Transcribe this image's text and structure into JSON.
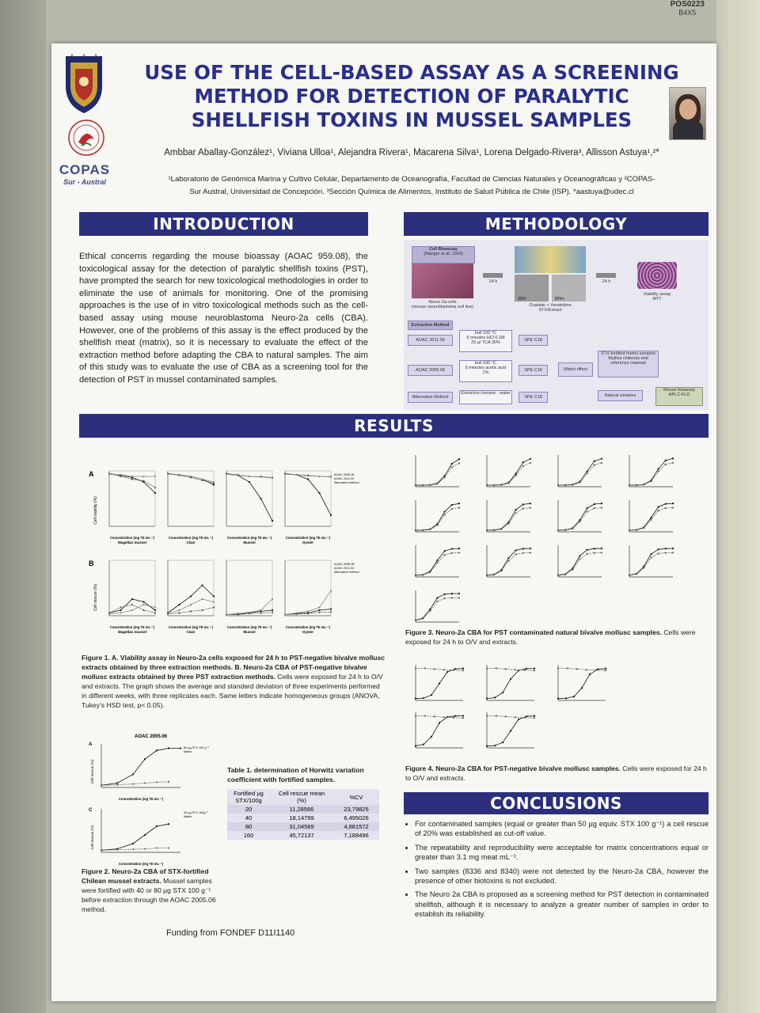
{
  "poster_tag": {
    "code": "POS0223",
    "sub": "B4X5"
  },
  "header": {
    "title_lines": [
      "USE  OF THE CELL-BASED ASSAY AS A SCREENING",
      "METHOD FOR DETECTION OF PARALYTIC",
      "SHELLFISH TOXINS IN MUSSEL SAMPLES"
    ],
    "authors": "Ambbar Aballay-González¹, Viviana Ulloa¹, Alejandra Rivera¹, Macarena Silva¹, Lorena Delgado-Rivera³, Allisson Astuya¹,²*",
    "affiliation_1": "¹Laboratorio de Genómica Marina y Cultivo Celular, Departamento de Oceanografía, Facultad de Ciencias Naturales y Oceanográficas y ²COPAS-",
    "affiliation_2": "Sur Austral, Universidad de Concepción. ³Sección Química de Alimentos, Instituto de Salud Pública de Chile (ISP). *aastuya@udec.cl",
    "logo_copas": "COPAS",
    "logo_copas_sub": "Sur - Austral"
  },
  "introduction": {
    "heading": "INTRODUCTION",
    "text": "Ethical concerns regarding the mouse bioassay (AOAC 959.08), the toxicological assay for the detection of paralytic shellfish toxins (PST), have prompted the search for new toxicological methodologies in order to eliminate the use of animals for monitoring. One of the promising approaches is the use of in vitro toxicological methods such as the cell-based assay using mouse neuroblastoma Neuro-2a cells (CBA). However, one of the problems of this assay is the effect produced by the shellfish meat (matrix), so it is necessary to evaluate the effect of the extraction method before adapting the CBA to natural samples. The aim of this study was to evaluate the use of CBA as a screening tool for the detection of PST in mussel contaminated samples."
  },
  "methodology": {
    "heading": "METHODOLOGY",
    "cell_bioassay": "Cell Bioassay",
    "cell_ref": "(Manger et al. 1993)",
    "neuro_cells": "Neuro 2a cells",
    "neuro_cells_sub": "(mouse neuroblastoma cell line)",
    "time_1": "24 h",
    "time_2": "24 h",
    "ov_minus": "O/V-",
    "ov_plus": "O/V+",
    "treatment": "Ouabain + Veratridine",
    "treatment_sub": "STX/Extract",
    "viability": "Viability assay",
    "viability_sub": "MTT",
    "extraction_method": "Extraction Method",
    "m1": "AOAC 2011.05",
    "m1_step1": "boil 100 °C",
    "m1_step2": "5 minutes HCl 0,1M",
    "m1_step3": "25 µl TCA 30%",
    "m2": "AOAC 2005.06",
    "m2_step1": "boil 100 °C",
    "m2_step2": "5 minutes acetic acid",
    "m2_step3": "1%",
    "m3": "Alternative Method",
    "m3_step": "Extraction hexane - water",
    "spe": "SPE C18",
    "matrix_effect": "Matrix effect",
    "stx_fortified": "STX-fortified matrix samples Mytilus chilensis and reference material",
    "natural_samples": "Natural samples",
    "mouse_bioassay": "Mouse bioassay",
    "hplc": "HPLC-FLD"
  },
  "results": {
    "heading": "RESULTS",
    "fig1": {
      "panel_a_label": "A",
      "panel_b_label": "B",
      "ylabel_a": "Cell viability (%)",
      "ylabel_b": "Cell rescue (%)",
      "xlabel": "Concentration (mg TE mL⁻¹)",
      "panels": [
        "Magellan mussel",
        "Clam",
        "Mussel",
        "Oyster"
      ],
      "legend": [
        "AOAC 2005.06",
        "AOAC 2011.02",
        "Alternative method"
      ],
      "caption_bold": "Figure 1. A. Viability assay in Neuro-2a cells exposed for 24 h to PST-negative bivalve mollusc extracts obtained by three extraction methods. B. Neuro-2a CBA of PST-negative bivalve mollusc extracts obtained by three PST extraction methods.",
      "caption_rest": " Cells were exposed for 24 h to O/V and extracts. The graph shows the average and standard deviation of three experiments performed in different weeks, with three replicates each. Same letters indicate homogeneous groups (ANOVA, Tukey's HSD test, p< 0.05)."
    },
    "fig2": {
      "title": "AOAC 2005.06",
      "panel_a_label": "A",
      "panel_c_label": "C",
      "ylabel": "Cell rescue (%)",
      "xlabel": "Concentration (mg TE mL⁻¹)",
      "legend_a": [
        "80 µg STX 100 g⁻¹",
        "Matrix"
      ],
      "legend_c": [
        "40 µg STX 100g⁻¹",
        "Matrix"
      ],
      "caption_bold": "Figure 2. Neuro-2a CBA of STX-fortified Chilean mussel extracts.",
      "caption_rest": " Mussel samples were fortified with 40 or 80 µg STX 100 g⁻¹ before extraction through the AOAC 2005.06 method."
    },
    "table1": {
      "caption": "Table 1.  determination of Horwitz variation coefficient with fortified samples.",
      "headers": [
        "Fortified µg STX/100g",
        "Cell rescue mean (%)",
        "%CV"
      ],
      "rows": [
        [
          "20",
          "11,28566",
          "23,79825"
        ],
        [
          "40",
          "18,14799",
          "6,495026"
        ],
        [
          "80",
          "31,04589",
          "4,881572"
        ],
        [
          "160",
          "45,72137",
          "7,188496"
        ]
      ]
    },
    "fig3": {
      "caption_bold": "Figure 3. Neuro-2a CBA for PST contaminated natural bivalve mollusc samples.",
      "caption_rest": " Cells were exposed for 24 h to O/V and extracts."
    },
    "fig4": {
      "caption_bold": "Figure 4. Neuro-2a CBA for PST-negative bivalve mollusc samples.",
      "caption_rest": " Cells were exposed for 24 h to O/V and extracts."
    }
  },
  "conclusions": {
    "heading": "CONCLUSIONS",
    "items": [
      "For contaminated samples (equal or greater than 50 µg equiv. STX 100 g⁻¹) a cell rescue of 20% was established as cut-off value.",
      "The repeatability and reproducibility were acceptable for matrix concentrations equal or greater than 3.1 mg meat mL⁻¹.",
      "Two samples (8336 and 8340) were not detected by the Neuro-2a CBA, however the presence of other biotoxins is not excluded.",
      "The Neuro 2a CBA is proposed as a screening method for PST detection in contaminated shellfish, although it is necessary to analyze a greater number of samples in order to establish its reliability."
    ]
  },
  "funding": "Funding from FONDEF D11I1140",
  "colors": {
    "band": "#2b2f7c",
    "title": "#2a2f8a",
    "accent_red": "#c0282d"
  },
  "icons": {
    "logo_udec": "university-shield-icon",
    "logo_museum": "round-seal-icon"
  }
}
